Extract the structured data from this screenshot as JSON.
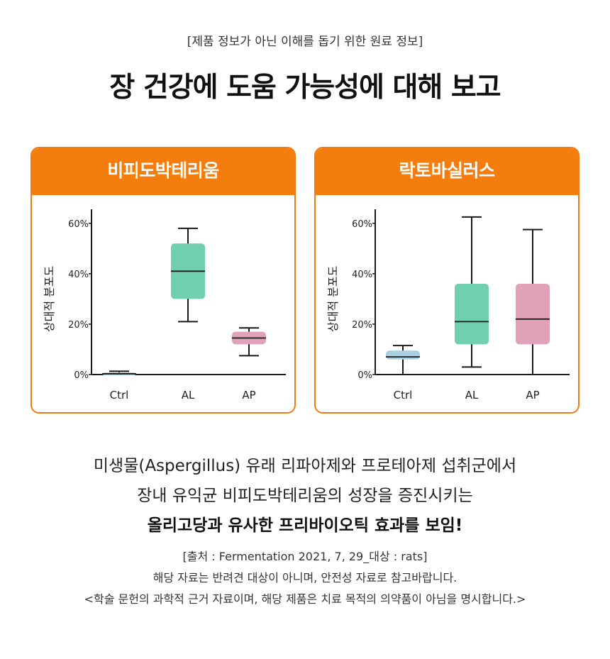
{
  "top_note": "[제품 정보가 아닌 이해를 돕기 위한 원료 정보]",
  "headline": "장 건강에 도움 가능성에 대해 보고",
  "colors": {
    "accent": "#f57d0d",
    "ctrl": "#a9cfe0",
    "al": "#6fcfaf",
    "ap": "#e0a2b8",
    "axis": "#1a1a1a"
  },
  "chart_data": [
    {
      "type": "boxplot",
      "title": "비피도박테리움",
      "ylabel": "상대적 분포도",
      "ylim": [
        0,
        65
      ],
      "yticks": [
        0,
        20,
        40,
        60
      ],
      "ytick_labels": [
        "0%",
        "20%",
        "40%",
        "60%"
      ],
      "categories": [
        "Ctrl",
        "AL",
        "AP"
      ],
      "series": [
        {
          "name": "Ctrl",
          "whisker_low": 0,
          "q1": 0,
          "median": 0.3,
          "q3": 0.8,
          "whisker_high": 1.3
        },
        {
          "name": "AL",
          "whisker_low": 21,
          "q1": 30,
          "median": 41,
          "q3": 52,
          "whisker_high": 58
        },
        {
          "name": "AP",
          "whisker_low": 7.5,
          "q1": 12,
          "median": 14.5,
          "q3": 17,
          "whisker_high": 18.5
        }
      ]
    },
    {
      "type": "boxplot",
      "title": "락토바실러스",
      "ylabel": "상대적 분포도",
      "ylim": [
        0,
        65
      ],
      "yticks": [
        0,
        20,
        40,
        60
      ],
      "ytick_labels": [
        "0%",
        "20%",
        "40%",
        "60%"
      ],
      "categories": [
        "Ctrl",
        "AL",
        "AP"
      ],
      "series": [
        {
          "name": "Ctrl",
          "whisker_low": 0,
          "q1": 6,
          "median": 7,
          "q3": 9.5,
          "whisker_high": 11.5
        },
        {
          "name": "AL",
          "whisker_low": 3,
          "q1": 12,
          "median": 21,
          "q3": 36,
          "whisker_high": 62.5
        },
        {
          "name": "AP",
          "whisker_low": 0,
          "q1": 12,
          "median": 22,
          "q3": 36,
          "whisker_high": 57.5
        }
      ]
    }
  ],
  "description": {
    "line1": "미생물(Aspergillus) 유래 리파아제와  프로테아제 섭취군에서",
    "line2": "장내 유익균 비피도박테리움의 성장을 증진시키는",
    "line3": "올리고당과 유사한 프리바이오틱 효과를 보임!"
  },
  "source": {
    "line1": "[출처 : Fermentation 2021, 7, 29_대상 : rats]",
    "line2": "해당 자료는 반려견 대상이 아니며, 안전성 자료로 참고바랍니다.",
    "line3": "<학술 문헌의 과학적 근거 자료이며, 해당 제품은 치료 목적의 의약품이 아님을 명시합니다.>"
  }
}
